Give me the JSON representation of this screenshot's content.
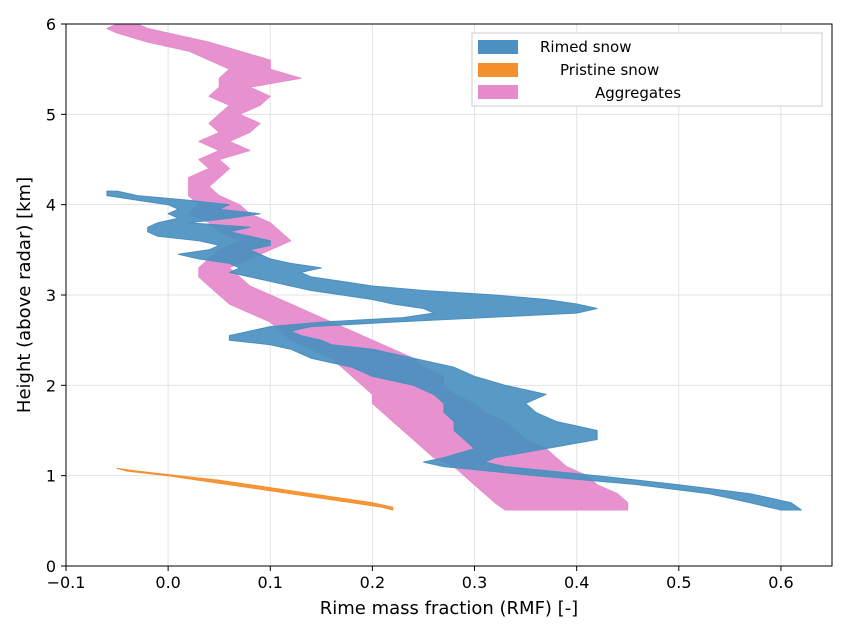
{
  "chart_data": {
    "type": "area",
    "xlabel": "Rime mass fraction (RMF) [-]",
    "ylabel": "Height (above radar) [km]",
    "xlim": [
      -0.1,
      0.65
    ],
    "ylim": [
      0,
      6
    ],
    "xticks": [
      "−0.1",
      "0.0",
      "0.1",
      "0.2",
      "0.3",
      "0.4",
      "0.5",
      "0.6"
    ],
    "yticks": [
      "0",
      "1",
      "2",
      "3",
      "4",
      "5",
      "6"
    ],
    "grid": true,
    "legend_position": "top-right",
    "series": [
      {
        "name": "Rimed snow",
        "color": "#4a90c0",
        "y": [
          4.15,
          4.1,
          4.05,
          4.0,
          3.95,
          3.9,
          3.85,
          3.8,
          3.75,
          3.7,
          3.65,
          3.6,
          3.55,
          3.5,
          3.45,
          3.4,
          3.35,
          3.3,
          3.25,
          3.2,
          3.15,
          3.1,
          3.05,
          3.0,
          2.95,
          2.9,
          2.85,
          2.8,
          2.75,
          2.7,
          2.65,
          2.6,
          2.55,
          2.5,
          2.45,
          2.4,
          2.3,
          2.2,
          2.1,
          2.0,
          1.9,
          1.8,
          1.7,
          1.6,
          1.5,
          1.4,
          1.3,
          1.2,
          1.15,
          1.1,
          1.0,
          0.9,
          0.8,
          0.7,
          0.62
        ],
        "low": [
          -0.06,
          -0.06,
          -0.03,
          0.0,
          0.01,
          0.0,
          0.01,
          -0.01,
          -0.02,
          -0.02,
          -0.01,
          0.03,
          0.05,
          0.04,
          0.01,
          0.03,
          0.06,
          0.07,
          0.06,
          0.08,
          0.1,
          0.12,
          0.14,
          0.17,
          0.2,
          0.22,
          0.25,
          0.26,
          0.23,
          0.15,
          0.1,
          0.08,
          0.06,
          0.06,
          0.1,
          0.12,
          0.14,
          0.18,
          0.2,
          0.24,
          0.26,
          0.27,
          0.27,
          0.28,
          0.28,
          0.29,
          0.3,
          0.27,
          0.25,
          0.27,
          0.36,
          0.46,
          0.53,
          0.57,
          0.6
        ],
        "high": [
          -0.05,
          -0.03,
          0.02,
          0.06,
          0.05,
          0.09,
          0.06,
          0.02,
          0.08,
          0.06,
          0.08,
          0.1,
          0.1,
          0.08,
          0.09,
          0.1,
          0.12,
          0.15,
          0.13,
          0.14,
          0.17,
          0.2,
          0.25,
          0.32,
          0.37,
          0.4,
          0.42,
          0.4,
          0.31,
          0.22,
          0.14,
          0.12,
          0.13,
          0.15,
          0.16,
          0.2,
          0.24,
          0.28,
          0.3,
          0.33,
          0.37,
          0.35,
          0.36,
          0.38,
          0.42,
          0.42,
          0.37,
          0.32,
          0.31,
          0.33,
          0.42,
          0.5,
          0.57,
          0.61,
          0.62
        ]
      },
      {
        "name": "Pristine snow",
        "color": "#f5902e",
        "y": [
          1.08,
          1.05,
          1.0,
          0.95,
          0.9,
          0.85,
          0.8,
          0.75,
          0.7,
          0.65,
          0.62
        ],
        "low": [
          -0.05,
          -0.04,
          0.0,
          0.03,
          0.06,
          0.09,
          0.12,
          0.15,
          0.18,
          0.21,
          0.22
        ],
        "high": [
          -0.05,
          -0.03,
          0.01,
          0.05,
          0.08,
          0.11,
          0.14,
          0.17,
          0.2,
          0.22,
          0.22
        ]
      },
      {
        "name": "Aggregates",
        "color": "#e68ccc",
        "y": [
          6.0,
          5.95,
          5.9,
          5.8,
          5.7,
          5.6,
          5.5,
          5.4,
          5.3,
          5.2,
          5.1,
          5.0,
          4.9,
          4.8,
          4.7,
          4.6,
          4.5,
          4.4,
          4.3,
          4.2,
          4.1,
          4.0,
          3.9,
          3.8,
          3.7,
          3.6,
          3.5,
          3.4,
          3.3,
          3.2,
          3.1,
          3.0,
          2.9,
          2.8,
          2.7,
          2.6,
          2.5,
          2.4,
          2.3,
          2.2,
          2.1,
          2.0,
          1.9,
          1.8,
          1.7,
          1.6,
          1.5,
          1.4,
          1.3,
          1.2,
          1.1,
          1.0,
          0.9,
          0.8,
          0.7,
          0.62
        ],
        "low": [
          -0.05,
          -0.06,
          -0.05,
          -0.02,
          0.02,
          0.04,
          0.06,
          0.05,
          0.05,
          0.04,
          0.06,
          0.05,
          0.04,
          0.05,
          0.03,
          0.05,
          0.03,
          0.04,
          0.02,
          0.02,
          0.02,
          0.03,
          0.02,
          0.04,
          0.05,
          0.07,
          0.05,
          0.04,
          0.03,
          0.03,
          0.04,
          0.05,
          0.06,
          0.08,
          0.1,
          0.11,
          0.12,
          0.14,
          0.16,
          0.17,
          0.18,
          0.19,
          0.2,
          0.2,
          0.21,
          0.22,
          0.23,
          0.24,
          0.25,
          0.26,
          0.28,
          0.29,
          0.3,
          0.31,
          0.32,
          0.33
        ],
        "high": [
          -0.03,
          -0.02,
          0.0,
          0.04,
          0.07,
          0.1,
          0.1,
          0.13,
          0.08,
          0.1,
          0.09,
          0.07,
          0.09,
          0.08,
          0.06,
          0.08,
          0.05,
          0.06,
          0.05,
          0.04,
          0.05,
          0.07,
          0.08,
          0.1,
          0.11,
          0.12,
          0.1,
          0.08,
          0.06,
          0.07,
          0.08,
          0.1,
          0.12,
          0.14,
          0.16,
          0.18,
          0.2,
          0.22,
          0.24,
          0.25,
          0.27,
          0.27,
          0.28,
          0.3,
          0.31,
          0.33,
          0.34,
          0.35,
          0.37,
          0.38,
          0.39,
          0.41,
          0.42,
          0.44,
          0.45,
          0.45
        ]
      }
    ]
  }
}
